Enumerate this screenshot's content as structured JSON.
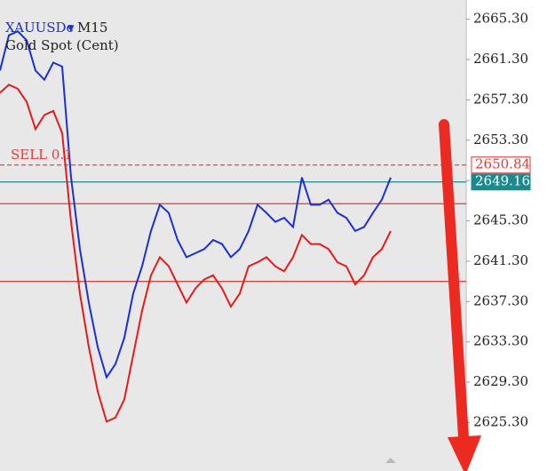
{
  "chart_data": {
    "type": "line",
    "title": "XAUUSDc",
    "timeframe": "M15",
    "subtitle": "Gold Spot (Cent)",
    "annotation": "SELL 0.1",
    "x": [
      0,
      1,
      2,
      3,
      4,
      5,
      6,
      7,
      8,
      9,
      10,
      11,
      12,
      13,
      14,
      15,
      16,
      17,
      18,
      19,
      20,
      21,
      22,
      23,
      24,
      25,
      26,
      27,
      28,
      29,
      30,
      31,
      32,
      33,
      34,
      35,
      36,
      37,
      38,
      39,
      40,
      41,
      42,
      43,
      44
    ],
    "xlim": [
      0,
      52.5
    ],
    "ylim": [
      2620.5,
      2667.2
    ],
    "yticks": [
      {
        "value": 2665.3,
        "label": "2665.30"
      },
      {
        "value": 2661.3,
        "label": "2661.30"
      },
      {
        "value": 2657.3,
        "label": "2657.30"
      },
      {
        "value": 2653.3,
        "label": "2653.30"
      },
      {
        "value": 2649.3,
        "label": "2649.30"
      },
      {
        "value": 2645.3,
        "label": "2645.30"
      },
      {
        "value": 2641.3,
        "label": "2641.30"
      },
      {
        "value": 2637.3,
        "label": "2637.30"
      },
      {
        "value": 2633.3,
        "label": "2633.30"
      },
      {
        "value": 2629.3,
        "label": "2629.30"
      },
      {
        "value": 2625.3,
        "label": "2625.30"
      }
    ],
    "series": [
      {
        "color": "#1a2fd6",
        "values": [
          2660.2,
          2663.7,
          2664.1,
          2663.2,
          2660.2,
          2659.3,
          2661.0,
          2660.6,
          2649.6,
          2642.5,
          2637.2,
          2632.8,
          2629.8,
          2631.1,
          2633.7,
          2638.1,
          2640.8,
          2644.3,
          2646.9,
          2646.1,
          2643.4,
          2641.7,
          2642.1,
          2642.5,
          2643.4,
          2643.0,
          2641.7,
          2642.5,
          2644.3,
          2646.9,
          2646.1,
          2645.2,
          2645.6,
          2644.7,
          2649.6,
          2646.9,
          2646.9,
          2647.4,
          2646.1,
          2645.6,
          2644.3,
          2644.7,
          2646.1,
          2647.4,
          2649.6
        ]
      },
      {
        "color": "#e8191b",
        "values": [
          2658.0,
          2658.8,
          2658.4,
          2657.1,
          2654.4,
          2655.8,
          2656.2,
          2654.0,
          2645.2,
          2638.1,
          2632.8,
          2628.4,
          2625.4,
          2625.8,
          2627.6,
          2632.0,
          2636.4,
          2639.9,
          2641.7,
          2640.8,
          2639.0,
          2637.2,
          2638.6,
          2639.5,
          2639.9,
          2638.6,
          2636.8,
          2638.1,
          2640.8,
          2641.2,
          2641.7,
          2640.8,
          2640.3,
          2641.7,
          2643.9,
          2643.0,
          2643.0,
          2642.5,
          2641.2,
          2640.8,
          2639.0,
          2639.9,
          2641.7,
          2642.5,
          2644.3
        ]
      }
    ],
    "levels": [
      {
        "value": 2650.84,
        "label": "2650.84",
        "color": "#e53935",
        "style": "dashed"
      },
      {
        "value": 2649.16,
        "label": "2649.16",
        "color": "#1b8a8f",
        "style": "solid"
      },
      {
        "value": 2647.0,
        "color": "#e53935",
        "style": "solid"
      },
      {
        "value": 2639.3,
        "color": "#e53935",
        "style": "solid"
      }
    ]
  }
}
